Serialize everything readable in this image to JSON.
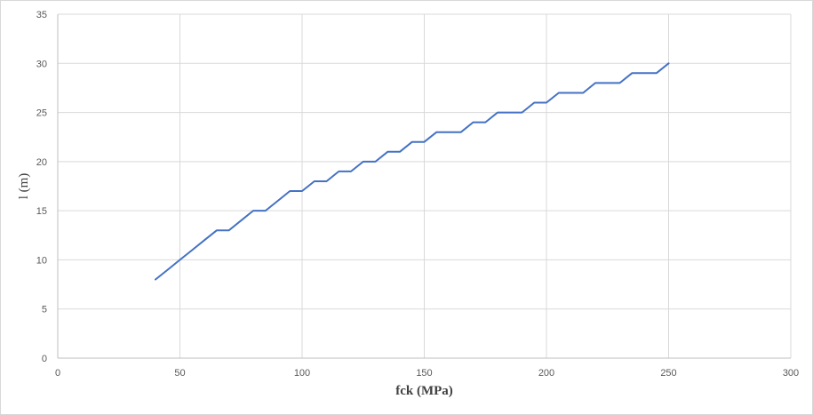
{
  "chart_data": {
    "type": "line",
    "title": "",
    "xlabel": "fck (MPa)",
    "ylabel": "l (m)",
    "xlim": [
      0,
      300
    ],
    "ylim": [
      0,
      35
    ],
    "xticks": [
      0,
      50,
      100,
      150,
      200,
      250,
      300
    ],
    "yticks": [
      0,
      5,
      10,
      15,
      20,
      25,
      30,
      35
    ],
    "grid": true,
    "legend": "none",
    "series": [
      {
        "color": "#4472c4",
        "x": [
          40,
          45,
          50,
          55,
          60,
          65,
          70,
          75,
          80,
          85,
          90,
          95,
          100,
          105,
          110,
          115,
          120,
          125,
          130,
          135,
          140,
          145,
          150,
          155,
          160,
          165,
          170,
          175,
          180,
          185,
          190,
          195,
          200,
          205,
          210,
          215,
          220,
          225,
          230,
          235,
          240,
          245,
          250
        ],
        "y": [
          8,
          9,
          10,
          11,
          12,
          13,
          13,
          14,
          15,
          15,
          16,
          17,
          17,
          18,
          18,
          19,
          19,
          20,
          20,
          21,
          21,
          22,
          22,
          23,
          23,
          23,
          24,
          24,
          25,
          25,
          25,
          26,
          26,
          27,
          27,
          27,
          28,
          28,
          28,
          29,
          29,
          29,
          30
        ]
      }
    ]
  }
}
